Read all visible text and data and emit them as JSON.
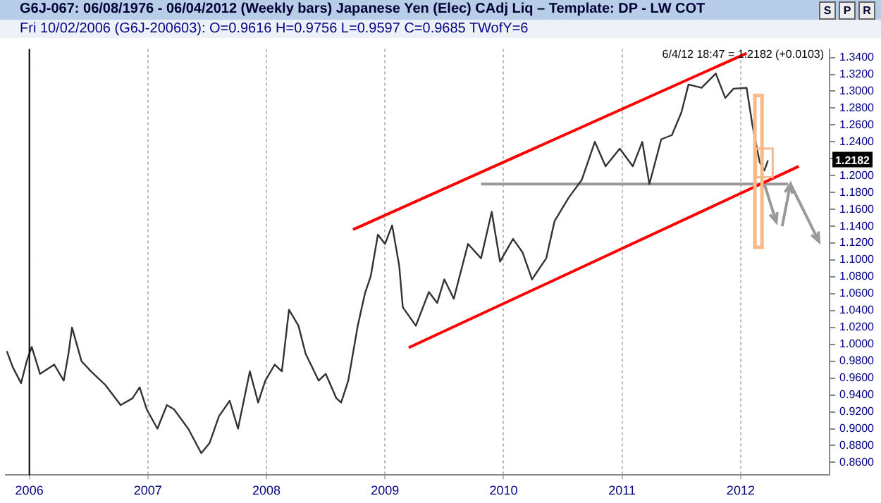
{
  "chart_data": {
    "type": "line",
    "title": "G6J-067:  06/08/1976 - 06/04/2012  (Weekly bars)  Japanese Yen (Elec) CAdj Liq  –  Template: DP - LW COT",
    "subtitle": "Fri   10/02/2006 (G6J-200603):  O=0.9616  H=0.9756  L=0.9597  C=0.9685  TWofY=6",
    "annotations": [
      "6/4/12 18:47 = 1.2182 (+0.0103)",
      "S",
      "P",
      "R",
      {
        "text": "1.2182",
        "y": 1.2182
      }
    ],
    "series": [
      {
        "color": "#333333",
        "x": [
          2005.81,
          2005.86,
          2005.93,
          2005.98,
          2006.02,
          2006.09,
          2006.21,
          2006.29,
          2006.33,
          2006.36,
          2006.44,
          2006.52,
          2006.64,
          2006.77,
          2006.87,
          2006.93,
          2006.99,
          2007.08,
          2007.16,
          2007.22,
          2007.34,
          2007.45,
          2007.52,
          2007.6,
          2007.69,
          2007.76,
          2007.86,
          2007.93,
          2007.99,
          2008.07,
          2008.13,
          2008.19,
          2008.27,
          2008.33,
          2008.44,
          2008.5,
          2008.59,
          2008.63,
          2008.69,
          2008.77,
          2008.83,
          2008.88,
          2008.94,
          2009.0,
          2009.06,
          2009.12,
          2009.15,
          2009.26,
          2009.37,
          2009.44,
          2009.5,
          2009.58,
          2009.7,
          2009.81,
          2009.9,
          2009.97,
          2010.08,
          2010.16,
          2010.24,
          2010.36,
          2010.43,
          2010.55,
          2010.66,
          2010.77,
          2010.86,
          2010.98,
          2011.09,
          2011.17,
          2011.23,
          2011.33,
          2011.42,
          2011.5,
          2011.56,
          2011.67,
          2011.79,
          2011.87,
          2011.94,
          2012.05,
          2012.1,
          2012.16,
          2012.2,
          2012.23
        ],
        "values": [
          0.992,
          0.973,
          0.954,
          0.981,
          0.997,
          0.965,
          0.976,
          0.957,
          0.989,
          1.02,
          0.98,
          0.968,
          0.952,
          0.928,
          0.936,
          0.949,
          0.923,
          0.9,
          0.928,
          0.923,
          0.9,
          0.871,
          0.883,
          0.915,
          0.933,
          0.9,
          0.968,
          0.931,
          0.957,
          0.976,
          0.968,
          1.041,
          1.022,
          0.989,
          0.957,
          0.965,
          0.936,
          0.931,
          0.957,
          1.022,
          1.06,
          1.081,
          1.13,
          1.119,
          1.141,
          1.093,
          1.044,
          1.022,
          1.062,
          1.049,
          1.077,
          1.054,
          1.119,
          1.102,
          1.157,
          1.098,
          1.125,
          1.109,
          1.077,
          1.102,
          1.146,
          1.174,
          1.195,
          1.24,
          1.211,
          1.232,
          1.211,
          1.24,
          1.19,
          1.243,
          1.248,
          1.275,
          1.308,
          1.304,
          1.321,
          1.292,
          1.303,
          1.304,
          1.259,
          1.216,
          1.206,
          1.218
        ]
      },
      {
        "color": "#ff0000",
        "x": [
          2008.73,
          2012.05
        ],
        "values": [
          1.136,
          1.345
        ]
      },
      {
        "color": "#ff0000",
        "x": [
          2009.2,
          2012.49
        ],
        "values": [
          0.996,
          1.211
        ]
      },
      {
        "color": "#999999",
        "x": [
          2009.81,
          2012.4
        ],
        "values": [
          1.19,
          1.19
        ]
      }
    ],
    "xlim": [
      2005.8,
      2012.75
    ],
    "xticks": [
      2006,
      2007,
      2008,
      2009,
      2010,
      2011,
      2012
    ],
    "ylim": [
      0.845,
      1.35
    ],
    "yticks": [
      {
        "value": 0.86,
        "label": "0.8600"
      },
      {
        "value": 0.88,
        "label": "0.8800"
      },
      {
        "value": 0.9,
        "label": "0.9000"
      },
      {
        "value": 0.92,
        "label": "0.9200"
      },
      {
        "value": 0.94,
        "label": "0.9400"
      },
      {
        "value": 0.96,
        "label": "0.9600"
      },
      {
        "value": 0.98,
        "label": "0.9800"
      },
      {
        "value": 1.0,
        "label": "1.0000"
      },
      {
        "value": 1.02,
        "label": "1.0200"
      },
      {
        "value": 1.04,
        "label": "1.0400"
      },
      {
        "value": 1.06,
        "label": "1.0600"
      },
      {
        "value": 1.08,
        "label": "1.0800"
      },
      {
        "value": 1.1,
        "label": "1.1000"
      },
      {
        "value": 1.12,
        "label": "1.1200"
      },
      {
        "value": 1.14,
        "label": "1.1400"
      },
      {
        "value": 1.16,
        "label": "1.1600"
      },
      {
        "value": 1.18,
        "label": "1.1800"
      },
      {
        "value": 1.2,
        "label": "1.2000"
      },
      {
        "value": 1.22,
        "label": null
      },
      {
        "value": 1.24,
        "label": "1.2400"
      },
      {
        "value": 1.26,
        "label": "1.2600"
      },
      {
        "value": 1.28,
        "label": "1.2800"
      },
      {
        "value": 1.3,
        "label": "1.3000"
      },
      {
        "value": 1.32,
        "label": "1.3200"
      },
      {
        "value": 1.34,
        "label": "1.3400"
      }
    ],
    "ref_lines": [
      {
        "axis": "x",
        "value": 2006.0,
        "color": "#000000"
      }
    ],
    "grid": "x",
    "marker": "none",
    "line_style": "solid",
    "legend": false
  }
}
